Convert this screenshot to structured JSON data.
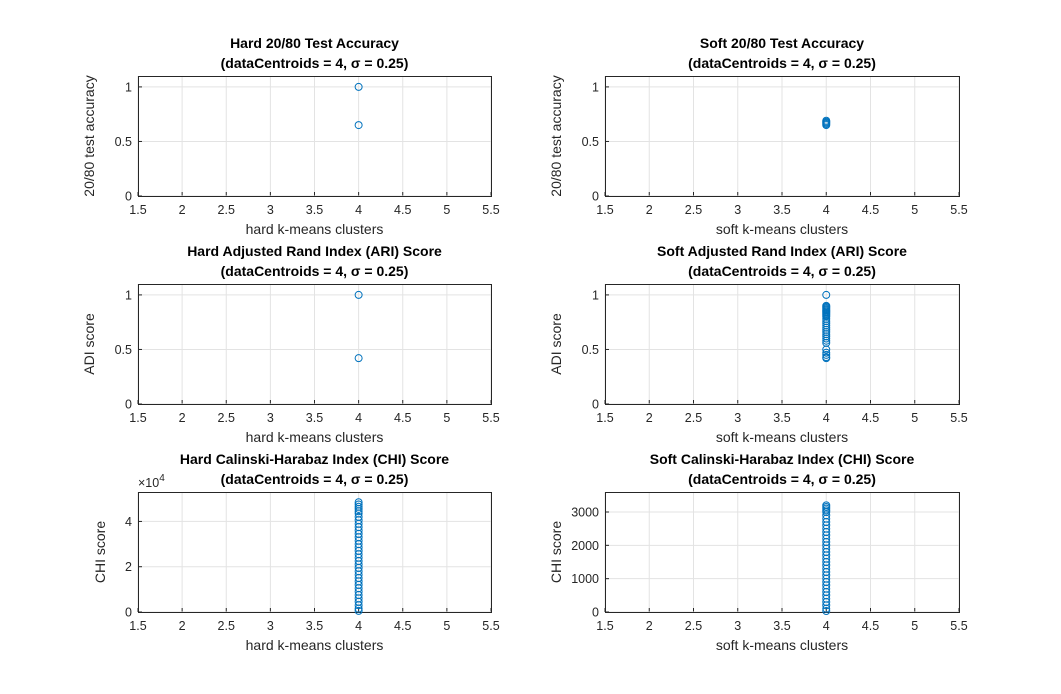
{
  "figure": {
    "background": "#ffffff",
    "marker_color": "#0072bd",
    "grid": true
  },
  "chart_data": [
    {
      "type": "scatter",
      "title": [
        "Hard 20/80 Test Accuracy",
        "(dataCentroids = 4, σ = 0.25)"
      ],
      "xlabel": "hard k-means clusters",
      "ylabel": "20/80 test accuracy",
      "xlim": [
        1.5,
        5.5
      ],
      "ylim": [
        0,
        1.1
      ],
      "xticks": [
        "1.5",
        "2",
        "2.5",
        "3",
        "3.5",
        "4",
        "4.5",
        "5",
        "5.5"
      ],
      "yticks": [
        "0",
        "0.5",
        "1"
      ],
      "series": [
        {
          "x": [
            4,
            4
          ],
          "y": [
            1.0,
            0.65
          ]
        }
      ]
    },
    {
      "type": "scatter",
      "title": [
        "Soft 20/80 Test Accuracy",
        "(dataCentroids = 4, σ = 0.25)"
      ],
      "xlabel": "soft k-means clusters",
      "ylabel": "20/80 test accuracy",
      "xlim": [
        1.5,
        5.5
      ],
      "ylim": [
        0,
        1.1
      ],
      "xticks": [
        "1.5",
        "2",
        "2.5",
        "3",
        "3.5",
        "4",
        "4.5",
        "5",
        "5.5"
      ],
      "yticks": [
        "0",
        "0.5",
        "1"
      ],
      "series": [
        {
          "x": [
            4,
            4,
            4,
            4,
            4
          ],
          "y": [
            0.65,
            0.66,
            0.67,
            0.68,
            0.69
          ]
        }
      ]
    },
    {
      "type": "scatter",
      "title": [
        "Hard Adjusted Rand Index (ARI) Score",
        "(dataCentroids = 4, σ = 0.25)"
      ],
      "xlabel": "hard k-means clusters",
      "ylabel": "ADI score",
      "xlim": [
        1.5,
        5.5
      ],
      "ylim": [
        0,
        1.1
      ],
      "xticks": [
        "1.5",
        "2",
        "2.5",
        "3",
        "3.5",
        "4",
        "4.5",
        "5",
        "5.5"
      ],
      "yticks": [
        "0",
        "0.5",
        "1"
      ],
      "series": [
        {
          "x": [
            4,
            4
          ],
          "y": [
            1.0,
            0.42
          ]
        }
      ]
    },
    {
      "type": "scatter",
      "title": [
        "Soft Adjusted Rand Index (ARI) Score",
        "(dataCentroids = 4, σ = 0.25)"
      ],
      "xlabel": "soft k-means clusters",
      "ylabel": "ADI score",
      "xlim": [
        1.5,
        5.5
      ],
      "ylim": [
        0,
        1.1
      ],
      "xticks": [
        "1.5",
        "2",
        "2.5",
        "3",
        "3.5",
        "4",
        "4.5",
        "5",
        "5.5"
      ],
      "yticks": [
        "0",
        "0.5",
        "1"
      ],
      "series": [
        {
          "x": [
            4,
            4,
            4,
            4,
            4,
            4,
            4,
            4,
            4,
            4,
            4,
            4,
            4,
            4,
            4,
            4,
            4,
            4,
            4,
            4,
            4,
            4,
            4,
            4,
            4,
            4,
            4,
            4,
            4
          ],
          "y": [
            1.0,
            0.9,
            0.89,
            0.88,
            0.87,
            0.86,
            0.85,
            0.84,
            0.83,
            0.82,
            0.81,
            0.8,
            0.78,
            0.76,
            0.74,
            0.72,
            0.7,
            0.68,
            0.66,
            0.64,
            0.62,
            0.6,
            0.58,
            0.56,
            0.5,
            0.47,
            0.45,
            0.43,
            0.42
          ]
        }
      ]
    },
    {
      "type": "scatter",
      "title": [
        "Hard Calinski-Harabaz Index (CHI) Score",
        "(dataCentroids = 4, σ = 0.25)"
      ],
      "xlabel": "hard k-means clusters",
      "ylabel": "CHI score",
      "xlim": [
        1.5,
        5.5
      ],
      "ylim": [
        0,
        53000
      ],
      "xticks": [
        "1.5",
        "2",
        "2.5",
        "3",
        "3.5",
        "4",
        "4.5",
        "5",
        "5.5"
      ],
      "yticks": [
        "0",
        "2",
        "4"
      ],
      "ytick_values": [
        0,
        20000,
        40000
      ],
      "exponent_base": "×10",
      "exponent_power": "4",
      "series": [
        {
          "x": [
            4,
            4,
            4,
            4,
            4,
            4,
            4,
            4,
            4,
            4,
            4,
            4,
            4,
            4,
            4,
            4,
            4,
            4,
            4,
            4,
            4,
            4,
            4,
            4,
            4,
            4,
            4,
            4,
            4,
            4,
            4,
            4,
            4,
            4,
            4
          ],
          "y": [
            500,
            1500,
            3000,
            4500,
            6000,
            7500,
            9000,
            10500,
            12000,
            13500,
            15000,
            16500,
            18000,
            19500,
            21000,
            22500,
            24000,
            25500,
            27000,
            28500,
            30000,
            31500,
            33000,
            34500,
            36000,
            37500,
            39000,
            40500,
            42000,
            43500,
            44500,
            45500,
            46500,
            47500,
            48500
          ]
        }
      ]
    },
    {
      "type": "scatter",
      "title": [
        "Soft Calinski-Harabaz Index (CHI) Score",
        "(dataCentroids = 4, σ = 0.25)"
      ],
      "xlabel": "soft k-means clusters",
      "ylabel": "CHI score",
      "xlim": [
        1.5,
        5.5
      ],
      "ylim": [
        0,
        3600
      ],
      "xticks": [
        "1.5",
        "2",
        "2.5",
        "3",
        "3.5",
        "4",
        "4.5",
        "5",
        "5.5"
      ],
      "yticks": [
        "0",
        "1000",
        "2000",
        "3000"
      ],
      "ytick_values": [
        0,
        1000,
        2000,
        3000
      ],
      "series": [
        {
          "x": [
            4,
            4,
            4,
            4,
            4,
            4,
            4,
            4,
            4,
            4,
            4,
            4,
            4,
            4,
            4,
            4,
            4,
            4,
            4,
            4,
            4,
            4,
            4,
            4,
            4,
            4,
            4,
            4,
            4,
            4,
            4,
            4,
            4,
            4,
            4
          ],
          "y": [
            30,
            100,
            200,
            300,
            400,
            500,
            600,
            700,
            800,
            900,
            1000,
            1100,
            1200,
            1300,
            1400,
            1500,
            1600,
            1700,
            1800,
            1900,
            2000,
            2100,
            2200,
            2300,
            2400,
            2500,
            2600,
            2700,
            2800,
            2900,
            3000,
            3050,
            3100,
            3150,
            3200
          ]
        }
      ]
    }
  ]
}
